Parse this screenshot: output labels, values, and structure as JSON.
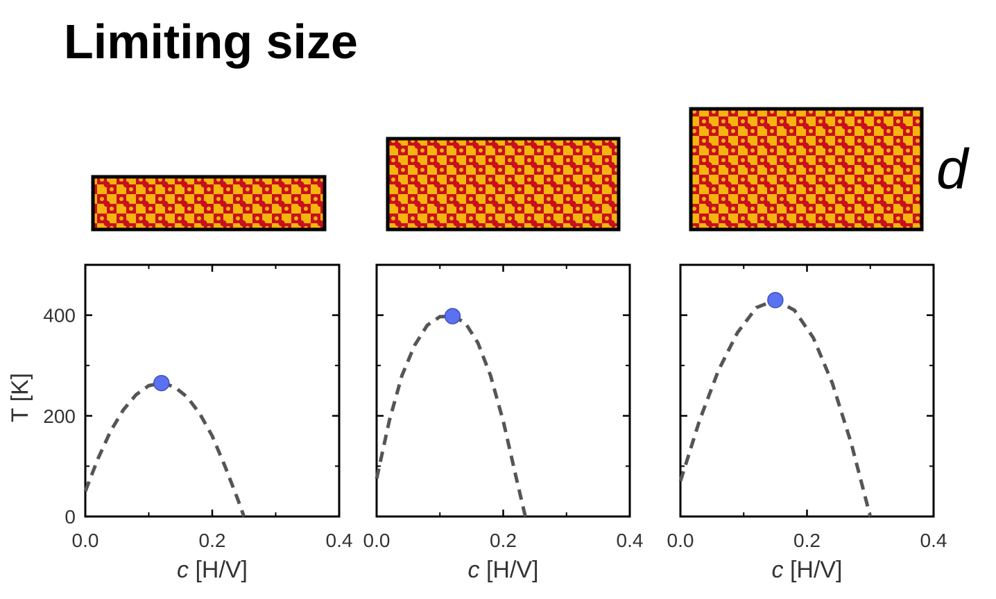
{
  "title": "Limiting size",
  "thickness_label": "d",
  "chart_data": [
    {
      "type": "line",
      "ylabel": "T [K]",
      "xlabel": {
        "symbol": "c",
        "unit": "[H/V]"
      },
      "xlim": [
        0,
        0.4
      ],
      "xticks": [
        {
          "value": 0,
          "label": "0.0"
        },
        0.2,
        0.4
      ],
      "xminorticks": [
        0.1,
        0.3
      ],
      "ylim": [
        0,
        500
      ],
      "yticks": [
        0,
        200,
        400
      ],
      "yminorticks": [
        100,
        300,
        500
      ],
      "x": [
        0,
        0.02,
        0.04,
        0.06,
        0.08,
        0.1,
        0.12,
        0.14,
        0.16,
        0.18,
        0.2,
        0.22,
        0.24,
        0.25
      ],
      "series": [
        {
          "color": "#555555",
          "dashed": true,
          "values": [
            50,
            115,
            170,
            212,
            242,
            260,
            265,
            258,
            238,
            205,
            160,
            100,
            35,
            0
          ]
        }
      ],
      "marker": {
        "x": 0.12,
        "y": 265,
        "color": "#5b72f0"
      }
    },
    {
      "type": "line",
      "xlabel": {
        "symbol": "c",
        "unit": "[H/V]"
      },
      "xlim": [
        0,
        0.4
      ],
      "xticks": [
        {
          "value": 0,
          "label": "0.0"
        },
        0.2,
        0.4
      ],
      "xminorticks": [
        0.1,
        0.3
      ],
      "ylim": [
        0,
        500
      ],
      "yticks": [
        0,
        200,
        400
      ],
      "yminorticks": [
        100,
        300,
        500
      ],
      "x": [
        0,
        0.02,
        0.04,
        0.06,
        0.08,
        0.1,
        0.12,
        0.14,
        0.16,
        0.18,
        0.2,
        0.22,
        0.235
      ],
      "series": [
        {
          "color": "#555555",
          "dashed": true,
          "values": [
            75,
            190,
            280,
            340,
            380,
            397,
            398,
            385,
            345,
            280,
            190,
            80,
            0
          ]
        }
      ],
      "marker": {
        "x": 0.12,
        "y": 398,
        "color": "#5b72f0"
      }
    },
    {
      "type": "line",
      "xlabel": {
        "symbol": "c",
        "unit": "[H/V]"
      },
      "xlim": [
        0,
        0.4
      ],
      "xticks": [
        {
          "value": 0,
          "label": "0.0"
        },
        0.2,
        0.4
      ],
      "xminorticks": [
        0.1,
        0.3
      ],
      "ylim": [
        0,
        500
      ],
      "yticks": [
        0,
        200,
        400
      ],
      "yminorticks": [
        100,
        300,
        500
      ],
      "x": [
        0,
        0.03,
        0.06,
        0.09,
        0.12,
        0.15,
        0.18,
        0.21,
        0.24,
        0.27,
        0.3
      ],
      "series": [
        {
          "color": "#555555",
          "dashed": true,
          "values": [
            70,
            190,
            290,
            365,
            415,
            430,
            410,
            355,
            265,
            145,
            0
          ]
        }
      ],
      "marker": {
        "x": 0.15,
        "y": 430,
        "color": "#5b72f0"
      }
    }
  ]
}
